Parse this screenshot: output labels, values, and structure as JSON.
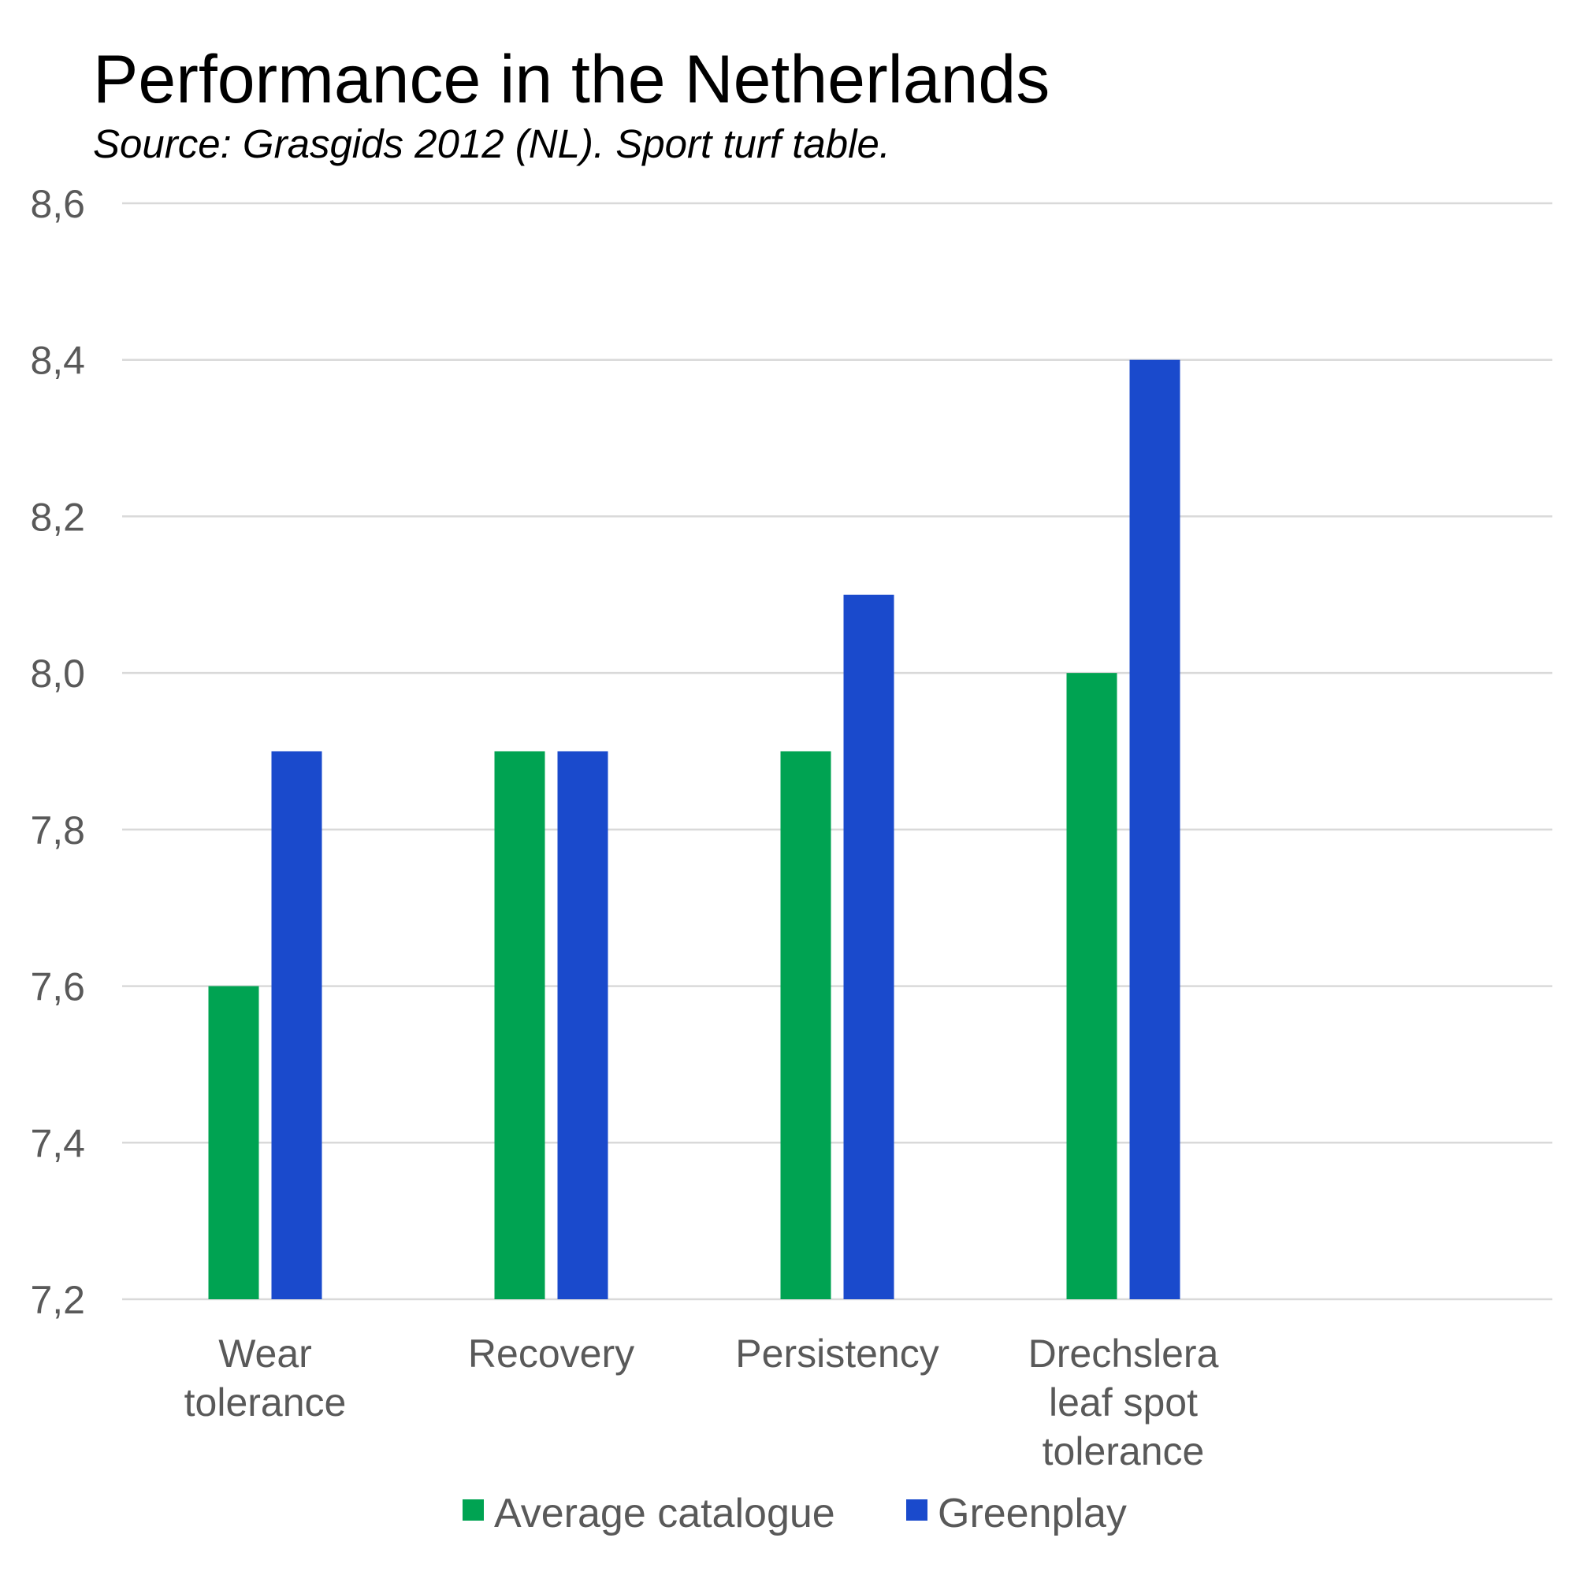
{
  "chart_data": {
    "type": "bar",
    "title": "Performance in the Netherlands",
    "subtitle": "Source: Grasgids 2012 (NL). Sport turf table.",
    "xlabel": "",
    "ylabel": "",
    "categories": [
      [
        "Wear",
        "tolerance"
      ],
      [
        "Recovery"
      ],
      [
        "Persistency"
      ],
      [
        "Drechslera",
        "leaf spot",
        "tolerance"
      ]
    ],
    "series": [
      {
        "name": "Average catalogue",
        "color": "#00a352",
        "values": [
          7.6,
          7.9,
          7.9,
          8.0
        ]
      },
      {
        "name": "Greenplay",
        "color": "#1a4acc",
        "values": [
          7.9,
          7.9,
          8.1,
          8.4
        ]
      }
    ],
    "ylim": [
      7.2,
      8.6
    ],
    "yticks": [
      7.2,
      7.4,
      7.6,
      7.8,
      8.0,
      8.2,
      8.4,
      8.6
    ],
    "ytick_labels": [
      "7,2",
      "7,4",
      "7,6",
      "7,8",
      "8,0",
      "8,2",
      "8,4",
      "8,6"
    ],
    "grid": true,
    "legend_position": "bottom",
    "category_slots": 5
  }
}
